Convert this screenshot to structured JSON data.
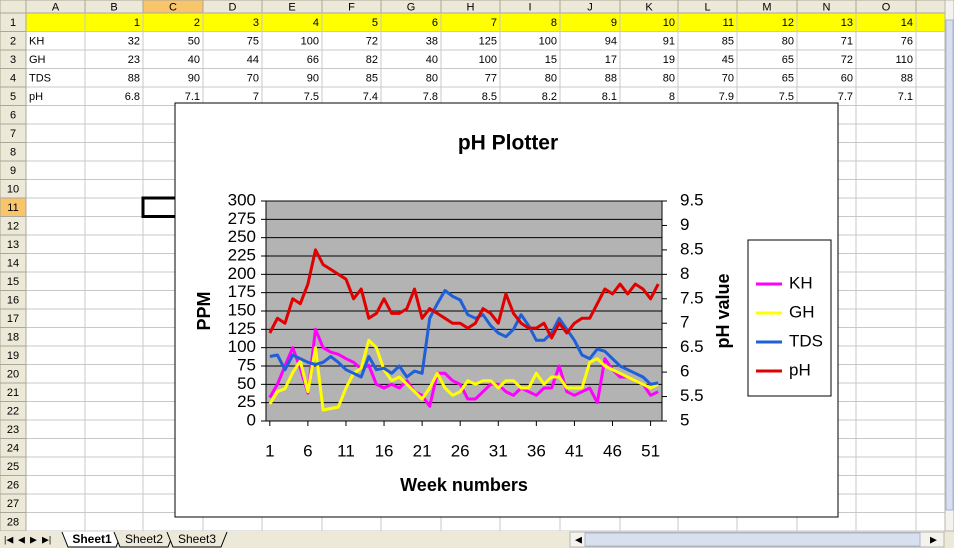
{
  "spreadsheet": {
    "columns": [
      "A",
      "B",
      "C",
      "D",
      "E",
      "F",
      "G",
      "H",
      "I",
      "J",
      "K",
      "L",
      "M",
      "N",
      "O"
    ],
    "rows": [
      1,
      2,
      3,
      4,
      5,
      6,
      7,
      8,
      9,
      10,
      11,
      12,
      13,
      14,
      15,
      16,
      17,
      18,
      19,
      20,
      21,
      22,
      23,
      24,
      25,
      26,
      27,
      28
    ],
    "sheet_tabs": [
      "Sheet1",
      "Sheet2",
      "Sheet3"
    ]
  },
  "chart_data": {
    "type": "line",
    "title": "pH Plotter",
    "x_label": "Week numbers",
    "y_label": "PPM",
    "y2_label": "pH value",
    "x": [
      1,
      2,
      3,
      4,
      5,
      6,
      7,
      8,
      9,
      10,
      11,
      12,
      13,
      14,
      15,
      16,
      17,
      18,
      19,
      20,
      21,
      22,
      23,
      24,
      25,
      26,
      27,
      28,
      29,
      30,
      31,
      32,
      33,
      34,
      35,
      36,
      37,
      38,
      39,
      40,
      41,
      42,
      43,
      44,
      45,
      46,
      47,
      48,
      49,
      50,
      51,
      52
    ],
    "xlim": [
      0.5,
      52.5
    ],
    "xticks": [
      1,
      6,
      11,
      16,
      21,
      26,
      31,
      36,
      41,
      46,
      51
    ],
    "ylim": [
      0,
      300
    ],
    "yticks": [
      0,
      25,
      50,
      75,
      100,
      125,
      150,
      175,
      200,
      225,
      250,
      275,
      300
    ],
    "y2lim": [
      5,
      9.5
    ],
    "y2ticks": [
      5,
      5.5,
      6,
      6.5,
      7,
      7.5,
      8,
      8.5,
      9,
      9.5
    ],
    "grid": true,
    "legend": "right",
    "series": [
      {
        "name": "KH",
        "color": "#ff00ff",
        "values": [
          32,
          50,
          75,
          100,
          72,
          38,
          125,
          100,
          94,
          91,
          85,
          80,
          71,
          76,
          50,
          45,
          50,
          45,
          55,
          40,
          35,
          20,
          65,
          65,
          55,
          50,
          30,
          30,
          40,
          50,
          50,
          40,
          35,
          45,
          40,
          35,
          45,
          45,
          75,
          40,
          35,
          40,
          45,
          25,
          85,
          70,
          60,
          60,
          55,
          50,
          35,
          40
        ]
      },
      {
        "name": "GH",
        "color": "#ffff00",
        "values": [
          23,
          40,
          44,
          66,
          82,
          40,
          100,
          15,
          17,
          19,
          45,
          65,
          72,
          110,
          100,
          70,
          55,
          60,
          50,
          40,
          30,
          45,
          65,
          45,
          35,
          40,
          55,
          50,
          55,
          55,
          45,
          55,
          55,
          45,
          45,
          65,
          50,
          60,
          60,
          45,
          45,
          45,
          80,
          85,
          75,
          70,
          65,
          60,
          55,
          50,
          45,
          50
        ]
      },
      {
        "name": "TDS",
        "color": "#1f5fd8",
        "values": [
          88,
          90,
          70,
          90,
          85,
          80,
          77,
          80,
          88,
          80,
          70,
          65,
          60,
          88,
          70,
          72,
          65,
          75,
          60,
          68,
          65,
          140,
          160,
          178,
          170,
          165,
          145,
          140,
          145,
          130,
          120,
          115,
          125,
          145,
          130,
          110,
          110,
          120,
          140,
          125,
          110,
          90,
          85,
          98,
          95,
          85,
          75,
          70,
          65,
          60,
          50,
          52
        ]
      },
      {
        "name": "pH",
        "color": "#e00000",
        "axis": "y2",
        "values": [
          6.8,
          7.1,
          7,
          7.5,
          7.4,
          7.8,
          8.5,
          8.2,
          8.1,
          8,
          7.9,
          7.5,
          7.7,
          7.1,
          7.2,
          7.5,
          7.2,
          7.2,
          7.3,
          7.7,
          7.1,
          7.3,
          7.2,
          7.1,
          7.0,
          7.0,
          6.9,
          7.0,
          7.3,
          7.2,
          7.0,
          7.6,
          7.2,
          7.0,
          6.9,
          6.9,
          7.0,
          6.7,
          7.0,
          6.8,
          7.0,
          7.1,
          7.1,
          7.4,
          7.7,
          7.6,
          7.8,
          7.6,
          7.8,
          7.7,
          7.5,
          7.8
        ]
      }
    ]
  }
}
